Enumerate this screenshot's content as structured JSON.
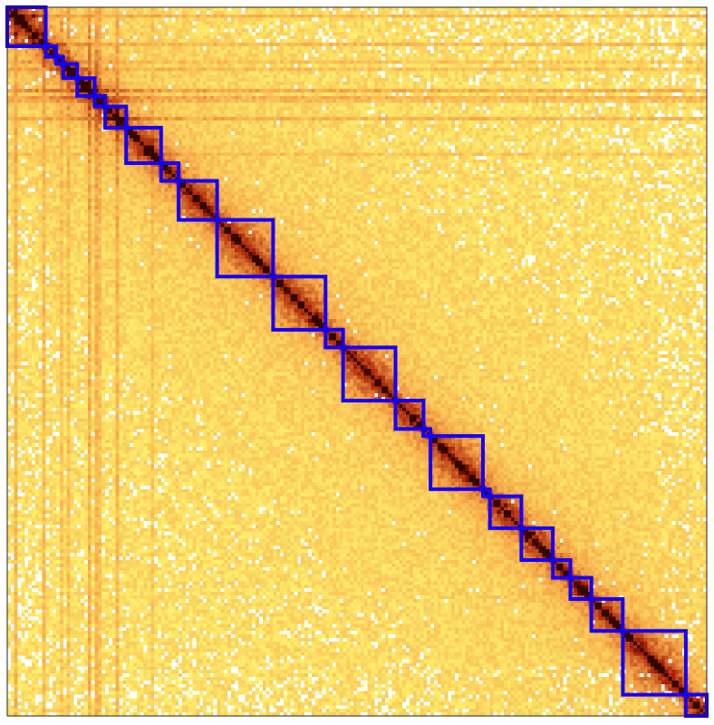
{
  "chart_data": {
    "type": "heatmap",
    "title": "",
    "xlabel": "",
    "ylabel": "",
    "bins": 200,
    "colormap": {
      "low": "#ffff77",
      "mid": "#f5a547",
      "high": "#a51c05",
      "diagonal": "#300800",
      "sparse": "#ffffff"
    },
    "tad_color": "#1400ff",
    "tads": [
      {
        "start": 0,
        "end": 11
      },
      {
        "start": 11,
        "end": 14
      },
      {
        "start": 14,
        "end": 16
      },
      {
        "start": 16,
        "end": 20
      },
      {
        "start": 20,
        "end": 25
      },
      {
        "start": 25,
        "end": 28
      },
      {
        "start": 28,
        "end": 34
      },
      {
        "start": 34,
        "end": 44
      },
      {
        "start": 44,
        "end": 49
      },
      {
        "start": 49,
        "end": 60
      },
      {
        "start": 60,
        "end": 76
      },
      {
        "start": 76,
        "end": 91
      },
      {
        "start": 91,
        "end": 96
      },
      {
        "start": 96,
        "end": 111
      },
      {
        "start": 111,
        "end": 119
      },
      {
        "start": 119,
        "end": 121
      },
      {
        "start": 121,
        "end": 136
      },
      {
        "start": 136,
        "end": 138
      },
      {
        "start": 138,
        "end": 147
      },
      {
        "start": 147,
        "end": 156
      },
      {
        "start": 156,
        "end": 161
      },
      {
        "start": 161,
        "end": 167
      },
      {
        "start": 167,
        "end": 176
      },
      {
        "start": 176,
        "end": 194
      },
      {
        "start": 194,
        "end": 200
      }
    ],
    "stripes": [
      {
        "bin": 2,
        "strength": 0.55
      },
      {
        "bin": 10,
        "strength": 0.5
      },
      {
        "bin": 15,
        "strength": 0.35
      },
      {
        "bin": 17,
        "strength": 0.4
      },
      {
        "bin": 23,
        "strength": 0.7
      },
      {
        "bin": 25,
        "strength": 0.6
      },
      {
        "bin": 26,
        "strength": 0.45
      },
      {
        "bin": 31,
        "strength": 0.55
      },
      {
        "bin": 41,
        "strength": 0.3
      }
    ]
  }
}
